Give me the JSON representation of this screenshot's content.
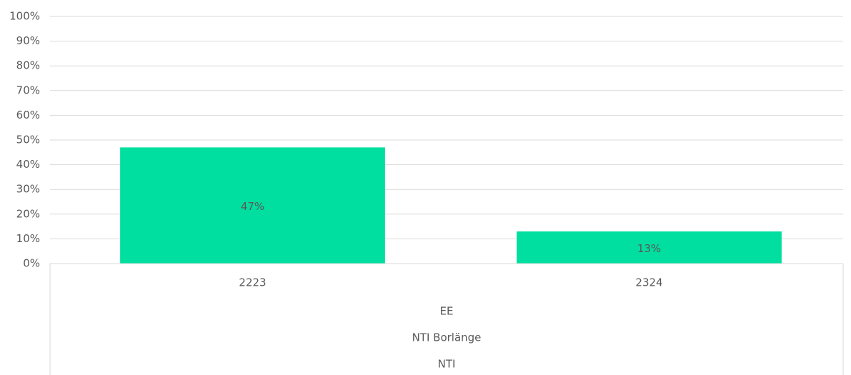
{
  "chart_data": {
    "type": "bar",
    "categories": [
      "2223",
      "2324"
    ],
    "values": [
      47,
      13
    ],
    "value_labels": [
      "47%",
      "13%"
    ],
    "category_groups": [
      "EE",
      "NTI Borlänge",
      "NTI"
    ],
    "color": "#00df9f",
    "ylim": [
      0,
      100
    ],
    "yticks": [
      {
        "value": 0,
        "label": "0%"
      },
      {
        "value": 10,
        "label": "10%"
      },
      {
        "value": 20,
        "label": "20%"
      },
      {
        "value": 30,
        "label": "30%"
      },
      {
        "value": 40,
        "label": "40%"
      },
      {
        "value": 50,
        "label": "50%"
      },
      {
        "value": 60,
        "label": "60%"
      },
      {
        "value": 70,
        "label": "70%"
      },
      {
        "value": 80,
        "label": "80%"
      },
      {
        "value": 90,
        "label": "90%"
      },
      {
        "value": 100,
        "label": "100%"
      }
    ],
    "grid": true
  }
}
